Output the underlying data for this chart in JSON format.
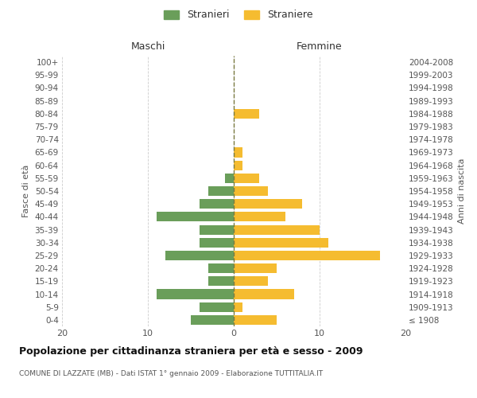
{
  "age_groups": [
    "100+",
    "95-99",
    "90-94",
    "85-89",
    "80-84",
    "75-79",
    "70-74",
    "65-69",
    "60-64",
    "55-59",
    "50-54",
    "45-49",
    "40-44",
    "35-39",
    "30-34",
    "25-29",
    "20-24",
    "15-19",
    "10-14",
    "5-9",
    "0-4"
  ],
  "birth_years": [
    "≤ 1908",
    "1909-1913",
    "1914-1918",
    "1919-1923",
    "1924-1928",
    "1929-1933",
    "1934-1938",
    "1939-1943",
    "1944-1948",
    "1949-1953",
    "1954-1958",
    "1959-1963",
    "1964-1968",
    "1969-1973",
    "1974-1978",
    "1979-1983",
    "1984-1988",
    "1989-1993",
    "1994-1998",
    "1999-2003",
    "2004-2008"
  ],
  "maschi": [
    0,
    0,
    0,
    0,
    0,
    0,
    0,
    0,
    0,
    1,
    3,
    4,
    9,
    4,
    4,
    8,
    3,
    3,
    9,
    4,
    5
  ],
  "femmine": [
    0,
    0,
    0,
    0,
    3,
    0,
    0,
    1,
    1,
    3,
    4,
    8,
    6,
    10,
    11,
    17,
    5,
    4,
    7,
    1,
    5
  ],
  "maschi_color": "#6a9e5a",
  "femmine_color": "#f5bc30",
  "background_color": "#ffffff",
  "grid_color": "#cccccc",
  "dashed_line_color": "#7a7a40",
  "title": "Popolazione per cittadinanza straniera per età e sesso - 2009",
  "subtitle": "COMUNE DI LAZZATE (MB) - Dati ISTAT 1° gennaio 2009 - Elaborazione TUTTITALIA.IT",
  "xlabel_left": "Maschi",
  "xlabel_right": "Femmine",
  "ylabel_left": "Fasce di età",
  "ylabel_right": "Anni di nascita",
  "legend_maschi": "Stranieri",
  "legend_femmine": "Straniere",
  "xlim": 20
}
